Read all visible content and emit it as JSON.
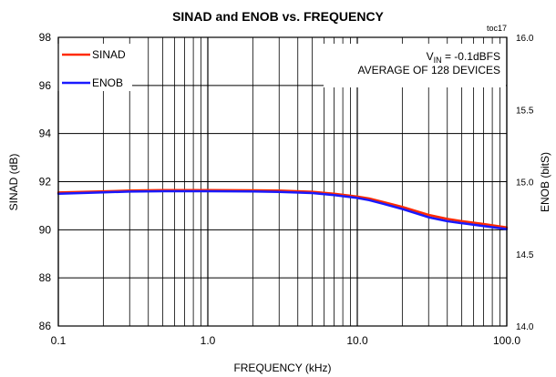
{
  "chart_data": {
    "type": "line",
    "title": "SINAD and ENOB vs. FREQUENCY",
    "tag": "toc17",
    "xlabel": "FREQUENCY (kHz)",
    "ylabel": "SINAD (dB)",
    "y2label": "ENOB (bitS)",
    "xscale": "log",
    "xlim": [
      0.1,
      100
    ],
    "ylim": [
      86,
      98
    ],
    "y2lim": [
      14.0,
      16.0
    ],
    "x_ticks": [
      0.1,
      1,
      10,
      100
    ],
    "x_tick_labels": [
      "0.1",
      "1.0",
      "10.0",
      "100.0"
    ],
    "y_ticks": [
      86,
      88,
      90,
      92,
      94,
      96,
      98
    ],
    "y_tick_labels": [
      "86",
      "88",
      "90",
      "92",
      "94",
      "96",
      "98"
    ],
    "y2_ticks": [
      14.0,
      14.5,
      15.0,
      15.5,
      16.0
    ],
    "y2_tick_labels": [
      "14.0",
      "14.5",
      "15.0",
      "15.5",
      "16.0"
    ],
    "grid": true,
    "legend_position": "top-left",
    "annotation": {
      "line1_main": "V",
      "line1_sub": "IN",
      "line1_rest": " = -0.1dBFS",
      "line2": "AVERAGE OF 128 DEVICES"
    },
    "series": [
      {
        "name": "SINAD",
        "axis": "left",
        "color": "#ff2a00",
        "x": [
          0.1,
          0.2,
          0.3,
          0.5,
          1,
          2,
          3,
          5,
          7,
          10,
          12,
          15,
          20,
          30,
          40,
          50,
          70,
          100
        ],
        "y": [
          91.55,
          91.6,
          91.63,
          91.65,
          91.65,
          91.64,
          91.63,
          91.58,
          91.5,
          91.38,
          91.3,
          91.15,
          90.95,
          90.62,
          90.45,
          90.36,
          90.24,
          90.1
        ]
      },
      {
        "name": "ENOB",
        "axis": "right",
        "color": "#1a1aff",
        "x": [
          0.1,
          0.2,
          0.3,
          0.5,
          1,
          2,
          3,
          5,
          7,
          10,
          12,
          15,
          20,
          30,
          40,
          50,
          70,
          100
        ],
        "y": [
          14.917,
          14.926,
          14.931,
          14.934,
          14.934,
          14.932,
          14.929,
          14.921,
          14.907,
          14.887,
          14.872,
          14.846,
          14.811,
          14.753,
          14.726,
          14.712,
          14.692,
          14.672
        ]
      }
    ]
  }
}
